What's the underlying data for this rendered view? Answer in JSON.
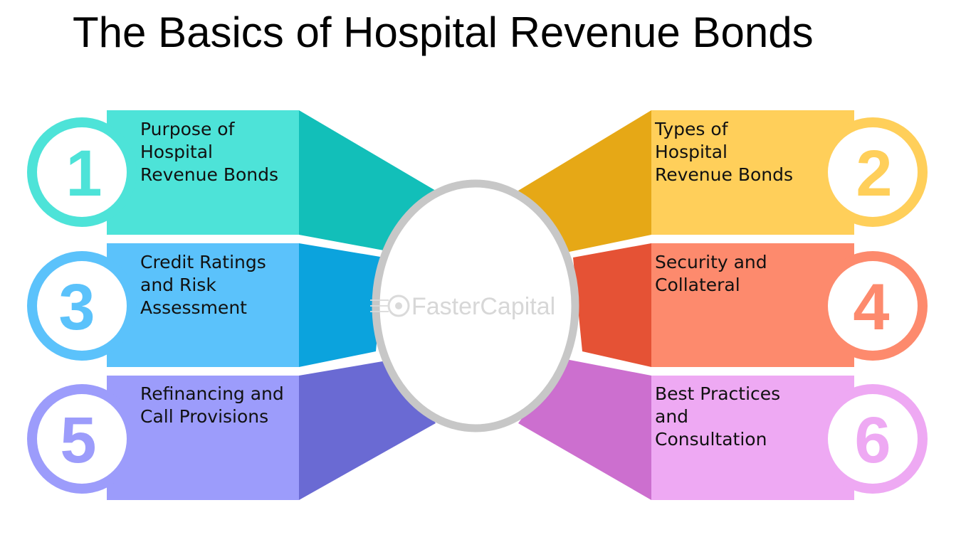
{
  "title": "The Basics of Hospital Revenue Bonds",
  "watermark": "FasterCapital",
  "items": [
    {
      "number": "1",
      "lines": [
        "Purpose of",
        "Hospital",
        "Revenue Bonds"
      ],
      "colors": {
        "light": "#4de3d8",
        "dark": "#12bfb9",
        "ring": "#4de3d8"
      }
    },
    {
      "number": "2",
      "lines": [
        "Types of",
        "Hospital",
        "Revenue Bonds"
      ],
      "colors": {
        "light": "#ffcf5a",
        "dark": "#e6a816",
        "ring": "#ffcf5a"
      }
    },
    {
      "number": "3",
      "lines": [
        "Credit Ratings",
        "and Risk",
        "Assessment"
      ],
      "colors": {
        "light": "#5bc2fb",
        "dark": "#0ba3dd",
        "ring": "#5bc2fb"
      }
    },
    {
      "number": "4",
      "lines": [
        "Security and",
        "Collateral"
      ],
      "colors": {
        "light": "#fd8a6d",
        "dark": "#e55235",
        "ring": "#fd8a6d"
      }
    },
    {
      "number": "5",
      "lines": [
        "Refinancing and",
        "Call Provisions"
      ],
      "colors": {
        "light": "#9c9cfb",
        "dark": "#6a6ad3",
        "ring": "#9c9cfb"
      }
    },
    {
      "number": "6",
      "lines": [
        "Best Practices",
        "and",
        "Consultation"
      ],
      "colors": {
        "light": "#eea9f3",
        "dark": "#cc6fcf",
        "ring": "#eea9f3"
      }
    }
  ],
  "center_ring_color": "#c7c7c7"
}
